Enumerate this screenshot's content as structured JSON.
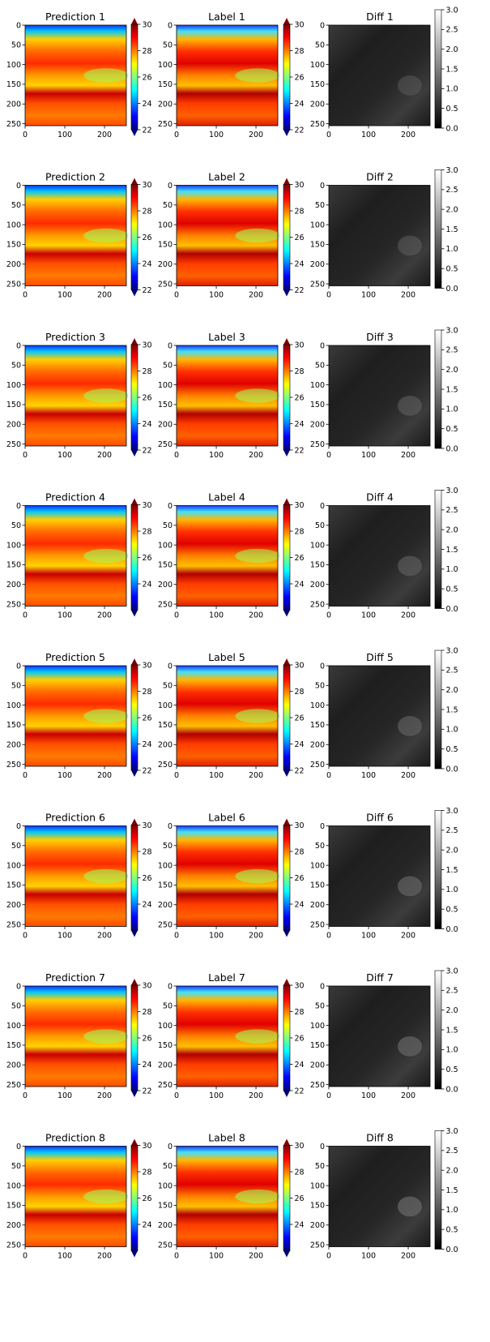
{
  "figure": {
    "rows": 8,
    "image_extent": [
      0,
      255
    ]
  },
  "colors": {
    "jet": [
      "#00007f",
      "#0000ff",
      "#007fff",
      "#00ffff",
      "#7fff7f",
      "#ffff00",
      "#ff7f00",
      "#ff0000",
      "#7f0000"
    ],
    "gray_low": "#000000",
    "gray_high": "#ffffff"
  },
  "chart_data": {
    "type": "heatmap",
    "panel_types": [
      {
        "kind": "prediction",
        "title_prefix": "Prediction",
        "colormap": "jet",
        "vmin": 22,
        "vmax": 30,
        "extend": "both"
      },
      {
        "kind": "label",
        "title_prefix": "Label",
        "colormap": "jet",
        "vmin": 22,
        "vmax": 30,
        "extend": "both"
      },
      {
        "kind": "diff",
        "title_prefix": "Diff",
        "colormap": "gray",
        "vmin": 0.0,
        "vmax": 3.0,
        "extend": "neither"
      }
    ],
    "x_ticks": [
      0,
      100,
      200
    ],
    "y_ticks": [
      0,
      50,
      100,
      150,
      200,
      250
    ],
    "colorbar_ticks": {
      "jet": [
        "22",
        "24",
        "26",
        "28",
        "30"
      ],
      "gray": [
        "0.0",
        "0.5",
        "1.0",
        "1.5",
        "2.0",
        "2.5",
        "3.0"
      ]
    },
    "rows": [
      {
        "index": "1",
        "jet_ticks": [
          "22",
          "24",
          "26",
          "28",
          "30"
        ]
      },
      {
        "index": "2",
        "jet_ticks": [
          "22",
          "24",
          "26",
          "28",
          "30"
        ]
      },
      {
        "index": "3",
        "jet_ticks": [
          "22",
          "24",
          "26",
          "28",
          "30"
        ]
      },
      {
        "index": "4",
        "jet_ticks": [
          "24",
          "26",
          "28",
          "30"
        ]
      },
      {
        "index": "5",
        "jet_ticks": [
          "22",
          "24",
          "26",
          "28",
          "30"
        ]
      },
      {
        "index": "6",
        "jet_ticks": [
          "24",
          "26",
          "28",
          "30"
        ]
      },
      {
        "index": "7",
        "jet_ticks": [
          "22",
          "24",
          "26",
          "28",
          "30"
        ]
      },
      {
        "index": "8",
        "jet_ticks": [
          "24",
          "26",
          "28",
          "30"
        ]
      }
    ]
  }
}
